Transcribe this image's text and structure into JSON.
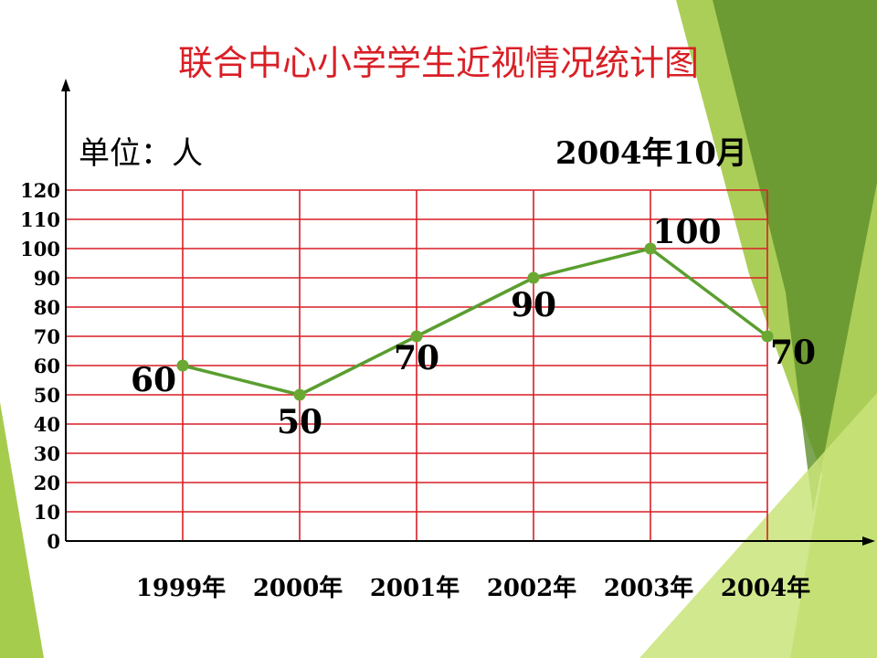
{
  "colors": {
    "title": "#d91f26",
    "grid": "#d91f26",
    "line": "#5a9e2f",
    "marker": "#6aa832",
    "deco_light": "#c9e47a",
    "deco_mid": "#9cc63b",
    "deco_dark": "#5e8f2a"
  },
  "chart_data": {
    "type": "line",
    "title": "联合中心小学学生近视情况统计图",
    "unit_label": "单位：人",
    "date_label": "2004年10月",
    "categories": [
      "1999年",
      "2000年",
      "2001年",
      "2002年",
      "2003年",
      "2004年"
    ],
    "series": [
      {
        "values": [
          60,
          50,
          70,
          90,
          100,
          70
        ]
      }
    ],
    "data_labels": [
      "60",
      "50",
      "70",
      "90",
      "100",
      "70"
    ],
    "ylim": [
      0,
      120
    ],
    "yticks": [
      "0",
      "10",
      "20",
      "30",
      "40",
      "50",
      "60",
      "70",
      "80",
      "90",
      "100",
      "110",
      "120"
    ],
    "grid": true,
    "legend": "none"
  }
}
